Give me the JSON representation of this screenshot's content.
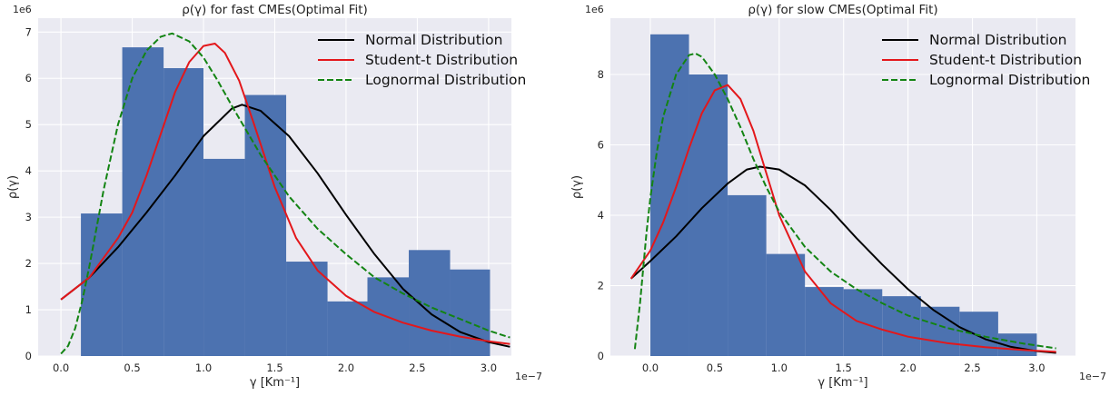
{
  "chart_data": [
    {
      "type": "bar",
      "title": "ρ(γ) for fast CMEs(Optimal Fit)",
      "xlabel": "γ [Km⁻¹]",
      "ylabel": "ρ(γ)",
      "x_offset_label": "1e−7",
      "y_offset_label": "1e6",
      "xlim": [
        -0.16,
        3.16
      ],
      "ylim": [
        0,
        7.3
      ],
      "x_ticks": [
        0.0,
        0.5,
        1.0,
        1.5,
        2.0,
        2.5,
        3.0
      ],
      "x_tick_labels": [
        "0.0",
        "0.5",
        "1.0",
        "1.5",
        "2.0",
        "2.5",
        "3.0"
      ],
      "y_ticks": [
        0,
        1,
        2,
        3,
        4,
        5,
        6,
        7
      ],
      "y_tick_labels": [
        "0",
        "1",
        "2",
        "3",
        "4",
        "5",
        "6",
        "7"
      ],
      "grid": true,
      "legend_position": "top-right",
      "histogram": {
        "color": "#4c72b0",
        "bin_edges": [
          0.14,
          0.43,
          0.72,
          1.0,
          1.29,
          1.58,
          1.87,
          2.15,
          2.44,
          2.73,
          3.01
        ],
        "values": [
          3.08,
          6.67,
          6.22,
          4.26,
          5.64,
          2.04,
          1.18,
          1.7,
          2.29,
          1.87
        ]
      },
      "series": [
        {
          "name": "Normal Distribution",
          "color": "#000000",
          "dash": "solid",
          "x": [
            0.0,
            0.2,
            0.4,
            0.6,
            0.8,
            1.0,
            1.2,
            1.27,
            1.4,
            1.6,
            1.8,
            2.0,
            2.2,
            2.4,
            2.6,
            2.8,
            3.0,
            3.15
          ],
          "y": [
            1.22,
            1.7,
            2.35,
            3.1,
            3.9,
            4.75,
            5.35,
            5.43,
            5.3,
            4.75,
            3.95,
            3.05,
            2.2,
            1.45,
            0.9,
            0.52,
            0.3,
            0.2
          ]
        },
        {
          "name": "Student-t Distribution",
          "color": "#e3171b",
          "dash": "solid",
          "x": [
            0.0,
            0.2,
            0.4,
            0.5,
            0.6,
            0.7,
            0.8,
            0.9,
            1.0,
            1.08,
            1.15,
            1.25,
            1.35,
            1.5,
            1.65,
            1.8,
            2.0,
            2.2,
            2.4,
            2.6,
            2.8,
            3.0,
            3.15
          ],
          "y": [
            1.22,
            1.7,
            2.55,
            3.1,
            3.9,
            4.8,
            5.7,
            6.35,
            6.7,
            6.75,
            6.55,
            5.95,
            5.05,
            3.65,
            2.55,
            1.85,
            1.3,
            0.95,
            0.72,
            0.55,
            0.42,
            0.32,
            0.26
          ]
        },
        {
          "name": "Lognormal Distribution",
          "color": "#138413",
          "dash": "dashed",
          "x": [
            0.0,
            0.05,
            0.1,
            0.15,
            0.2,
            0.3,
            0.4,
            0.5,
            0.6,
            0.7,
            0.78,
            0.9,
            1.0,
            1.1,
            1.2,
            1.4,
            1.6,
            1.8,
            2.0,
            2.2,
            2.4,
            2.6,
            2.8,
            3.0,
            3.15
          ],
          "y": [
            0.05,
            0.22,
            0.6,
            1.2,
            1.95,
            3.6,
            5.0,
            6.0,
            6.6,
            6.9,
            6.97,
            6.8,
            6.45,
            5.95,
            5.4,
            4.35,
            3.45,
            2.75,
            2.2,
            1.7,
            1.35,
            1.05,
            0.8,
            0.55,
            0.4
          ]
        }
      ]
    },
    {
      "type": "bar",
      "title": "ρ(γ) for slow CMEs(Optimal Fit)",
      "xlabel": "γ [Km⁻¹]",
      "ylabel": "ρ(γ)",
      "x_offset_label": "1e−7",
      "y_offset_label": "1e6",
      "xlim": [
        -0.31,
        3.3
      ],
      "ylim": [
        0,
        9.6
      ],
      "x_ticks": [
        0.0,
        0.5,
        1.0,
        1.5,
        2.0,
        2.5,
        3.0
      ],
      "x_tick_labels": [
        "0.0",
        "0.5",
        "1.0",
        "1.5",
        "2.0",
        "2.5",
        "3.0"
      ],
      "y_ticks": [
        0,
        2,
        4,
        6,
        8
      ],
      "y_tick_labels": [
        "0",
        "2",
        "4",
        "6",
        "8"
      ],
      "grid": true,
      "legend_position": "top-right",
      "histogram": {
        "color": "#4c72b0",
        "bin_edges": [
          0.0,
          0.3,
          0.6,
          0.9,
          1.2,
          1.5,
          1.8,
          2.1,
          2.4,
          2.7,
          3.0
        ],
        "values": [
          9.14,
          8.0,
          4.57,
          2.9,
          1.96,
          1.9,
          1.7,
          1.4,
          1.26,
          0.64
        ]
      },
      "series": [
        {
          "name": "Normal Distribution",
          "color": "#000000",
          "dash": "solid",
          "x": [
            -0.15,
            0.0,
            0.2,
            0.4,
            0.6,
            0.75,
            0.85,
            1.0,
            1.2,
            1.4,
            1.6,
            1.8,
            2.0,
            2.2,
            2.4,
            2.6,
            2.8,
            3.0,
            3.15
          ],
          "y": [
            2.2,
            2.7,
            3.4,
            4.2,
            4.9,
            5.3,
            5.38,
            5.3,
            4.85,
            4.15,
            3.35,
            2.6,
            1.9,
            1.3,
            0.82,
            0.48,
            0.26,
            0.14,
            0.09
          ]
        },
        {
          "name": "Student-t Distribution",
          "color": "#e3171b",
          "dash": "solid",
          "x": [
            -0.15,
            0.0,
            0.1,
            0.2,
            0.3,
            0.4,
            0.5,
            0.6,
            0.7,
            0.8,
            0.9,
            1.0,
            1.2,
            1.4,
            1.6,
            1.8,
            2.0,
            2.3,
            2.6,
            2.9,
            3.15
          ],
          "y": [
            2.2,
            3.0,
            3.8,
            4.8,
            5.9,
            6.9,
            7.55,
            7.7,
            7.3,
            6.4,
            5.2,
            4.0,
            2.4,
            1.5,
            1.0,
            0.75,
            0.55,
            0.37,
            0.25,
            0.17,
            0.12
          ]
        },
        {
          "name": "Lognormal Distribution",
          "color": "#138413",
          "dash": "dashed",
          "x": [
            -0.12,
            -0.08,
            -0.03,
            0.0,
            0.05,
            0.1,
            0.2,
            0.3,
            0.35,
            0.4,
            0.5,
            0.6,
            0.7,
            0.8,
            0.9,
            1.0,
            1.2,
            1.4,
            1.6,
            1.8,
            2.0,
            2.3,
            2.6,
            2.9,
            3.15
          ],
          "y": [
            0.2,
            1.5,
            3.5,
            4.5,
            5.8,
            6.8,
            8.0,
            8.55,
            8.6,
            8.5,
            8.0,
            7.3,
            6.5,
            5.6,
            4.8,
            4.1,
            3.1,
            2.4,
            1.9,
            1.5,
            1.15,
            0.8,
            0.55,
            0.35,
            0.22
          ]
        }
      ]
    }
  ]
}
